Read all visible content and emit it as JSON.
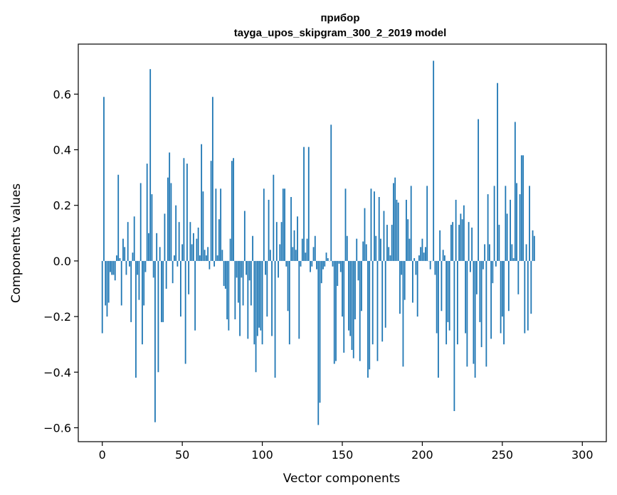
{
  "chart_data": {
    "type": "bar",
    "title": "прибор",
    "subtitle": "tayga_upos_skipgram_300_2_2019 model",
    "xlabel": "Vector components",
    "ylabel": "Components values",
    "xlim": [
      -15,
      315
    ],
    "ylim": [
      -0.65,
      0.78
    ],
    "xticks": [
      0,
      50,
      100,
      150,
      200,
      250,
      300
    ],
    "xtick_labels": [
      "0",
      "50",
      "100",
      "150",
      "200",
      "250",
      "300"
    ],
    "yticks": [
      -0.6,
      -0.4,
      -0.2,
      0.0,
      0.2,
      0.4,
      0.6
    ],
    "ytick_labels": [
      "−0.6",
      "−0.4",
      "−0.2",
      "0.0",
      "0.2",
      "0.4",
      "0.6"
    ],
    "grid": false,
    "bar_color": "#1f77b4",
    "values": [
      -0.26,
      0.59,
      -0.16,
      -0.2,
      -0.15,
      -0.04,
      -0.05,
      -0.05,
      -0.07,
      0.02,
      0.31,
      0.01,
      -0.16,
      0.08,
      0.05,
      -0.05,
      0.14,
      -0.02,
      -0.22,
      0.03,
      0.16,
      -0.42,
      -0.05,
      -0.14,
      0.28,
      -0.3,
      -0.16,
      -0.04,
      0.35,
      0.1,
      0.69,
      0.24,
      -0.06,
      -0.58,
      0.1,
      -0.4,
      0.05,
      -0.22,
      -0.22,
      0.17,
      -0.1,
      0.3,
      0.39,
      0.28,
      -0.08,
      0.02,
      0.2,
      -0.02,
      0.14,
      -0.2,
      0.06,
      0.37,
      -0.37,
      0.35,
      -0.12,
      0.14,
      0.06,
      0.1,
      -0.25,
      0.08,
      0.12,
      0.02,
      0.42,
      0.25,
      0.04,
      0.02,
      0.05,
      -0.03,
      0.36,
      0.59,
      -0.02,
      0.26,
      0.02,
      0.15,
      0.26,
      0.04,
      -0.09,
      -0.1,
      -0.21,
      -0.25,
      0.08,
      0.36,
      0.37,
      -0.21,
      -0.06,
      -0.15,
      -0.27,
      -0.06,
      -0.16,
      0.18,
      -0.05,
      -0.28,
      -0.07,
      -0.16,
      0.09,
      -0.3,
      -0.4,
      -0.27,
      -0.24,
      -0.25,
      -0.3,
      0.26,
      -0.05,
      -0.2,
      0.22,
      0.04,
      -0.27,
      0.31,
      -0.42,
      0.14,
      -0.06,
      0.06,
      0.14,
      0.26,
      0.26,
      -0.02,
      -0.18,
      -0.3,
      0.23,
      0.05,
      0.11,
      0.04,
      0.16,
      -0.28,
      -0.02,
      0.08,
      0.41,
      0.03,
      0.08,
      0.41,
      -0.04,
      -0.02,
      0.05,
      0.09,
      -0.03,
      -0.59,
      -0.51,
      -0.08,
      -0.03,
      -0.02,
      0.03,
      0.01,
      0.0,
      0.49,
      -0.02,
      -0.37,
      -0.36,
      -0.09,
      -0.01,
      -0.04,
      -0.2,
      -0.33,
      0.26,
      0.09,
      -0.25,
      -0.27,
      -0.32,
      -0.35,
      -0.21,
      0.08,
      -0.07,
      -0.36,
      -0.18,
      0.07,
      0.19,
      0.06,
      -0.42,
      -0.39,
      0.26,
      -0.3,
      0.25,
      0.09,
      -0.36,
      0.23,
      0.08,
      -0.29,
      0.18,
      -0.24,
      0.13,
      0.05,
      0.02,
      0.13,
      0.28,
      0.3,
      0.22,
      0.21,
      -0.19,
      -0.05,
      -0.38,
      -0.14,
      0.22,
      0.15,
      0.08,
      0.27,
      -0.15,
      0.01,
      -0.05,
      -0.2,
      0.02,
      0.05,
      0.08,
      0.03,
      0.05,
      0.27,
      0.0,
      -0.03,
      0.0,
      0.72,
      -0.05,
      -0.26,
      -0.42,
      0.11,
      -0.18,
      0.04,
      0.02,
      -0.3,
      -0.22,
      -0.25,
      0.13,
      0.14,
      -0.54,
      0.22,
      -0.3,
      0.13,
      0.17,
      0.15,
      0.2,
      -0.26,
      -0.38,
      0.14,
      -0.04,
      0.12,
      -0.37,
      -0.42,
      -0.12,
      0.51,
      -0.22,
      -0.31,
      -0.03,
      0.06,
      -0.38,
      0.24,
      0.06,
      -0.28,
      -0.08,
      0.27,
      -0.02,
      0.64,
      0.13,
      -0.26,
      -0.2,
      -0.3,
      0.27,
      0.17,
      -0.18,
      0.22,
      0.06,
      0.01,
      0.5,
      0.28,
      -0.12,
      0.24,
      0.38,
      0.38,
      -0.26,
      0.06,
      -0.25,
      0.27,
      -0.19,
      0.11,
      0.09
    ]
  }
}
